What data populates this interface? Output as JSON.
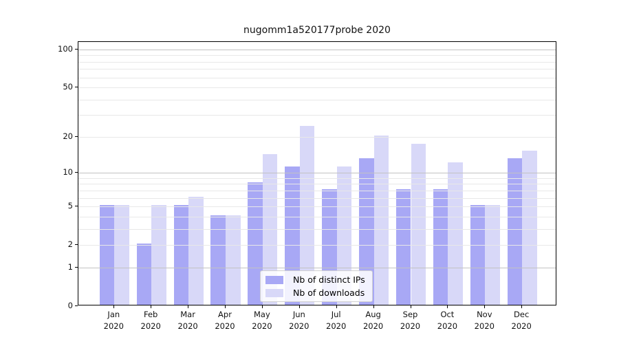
{
  "chart_data": {
    "type": "bar",
    "title": "nugomm1a520177probe 2020",
    "categories": [
      "Jan 2020",
      "Feb 2020",
      "Mar 2020",
      "Apr 2020",
      "May 2020",
      "Jun 2020",
      "Jul 2020",
      "Aug 2020",
      "Sep 2020",
      "Oct 2020",
      "Nov 2020",
      "Dec 2020"
    ],
    "series": [
      {
        "name": "Nb of distinct IPs",
        "color": "#a8a8f5",
        "values": [
          5,
          2,
          5,
          4,
          8,
          11,
          7,
          13,
          7,
          7,
          5,
          13
        ]
      },
      {
        "name": "Nb of downloads",
        "color": "#d8d8f8",
        "values": [
          5,
          5,
          6,
          4,
          14,
          24,
          11,
          20,
          17,
          12,
          5,
          15
        ]
      }
    ],
    "xlabel": "",
    "ylabel": "",
    "yscale": "log1p",
    "ylim": [
      0,
      112
    ],
    "ytick_values": [
      0,
      1,
      2,
      5,
      10,
      20,
      50,
      100
    ],
    "ytick_labels": [
      "0",
      "1",
      "2",
      "5",
      "10",
      "20",
      "50",
      "100"
    ],
    "grid": "on",
    "grid_major_values": [
      1,
      10,
      100
    ],
    "grid_minor_values": [
      2,
      3,
      4,
      5,
      6,
      7,
      8,
      9,
      20,
      30,
      40,
      50,
      60,
      70,
      80,
      90
    ],
    "grid_major_color": "#c2c2c2",
    "grid_minor_color": "#e8e8e8",
    "legend_position": "lower-center"
  }
}
